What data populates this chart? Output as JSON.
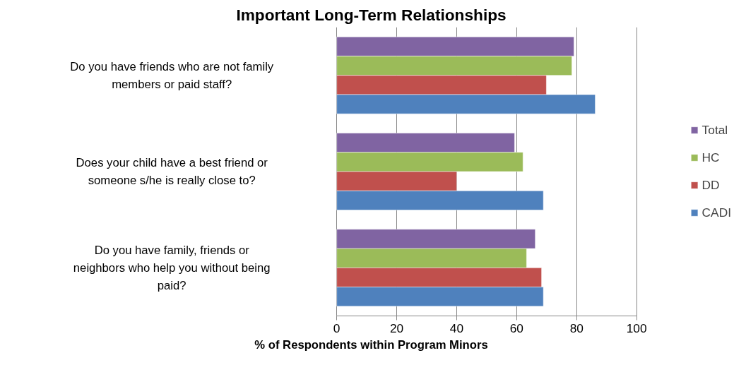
{
  "chart_data": {
    "type": "bar",
    "orientation": "horizontal",
    "title": "Important Long-Term Relationships",
    "xlabel": "% of Respondents within Program Minors",
    "categories": [
      "Do you have friends who are not family members or paid staff?",
      "Does your child have a best friend or someone s/he is really close to?",
      "Do you have family, friends or neighbors who help you without being paid?"
    ],
    "series": [
      {
        "name": "Total",
        "color": "#8064a2",
        "values": [
          79.1,
          59.3,
          66.2
        ]
      },
      {
        "name": "HC",
        "color": "#9bbb59",
        "values": [
          78.4,
          62.1,
          63.3
        ]
      },
      {
        "name": "DD",
        "color": "#c0504d",
        "values": [
          69.9,
          40.0,
          68.3
        ]
      },
      {
        "name": "CADI",
        "color": "#4f81bd",
        "values": [
          86.2,
          68.9,
          68.9
        ]
      }
    ],
    "xlim": [
      0,
      100
    ],
    "xticks": [
      0,
      20,
      40,
      60,
      80,
      100
    ],
    "grid": "x",
    "legend": "right"
  }
}
